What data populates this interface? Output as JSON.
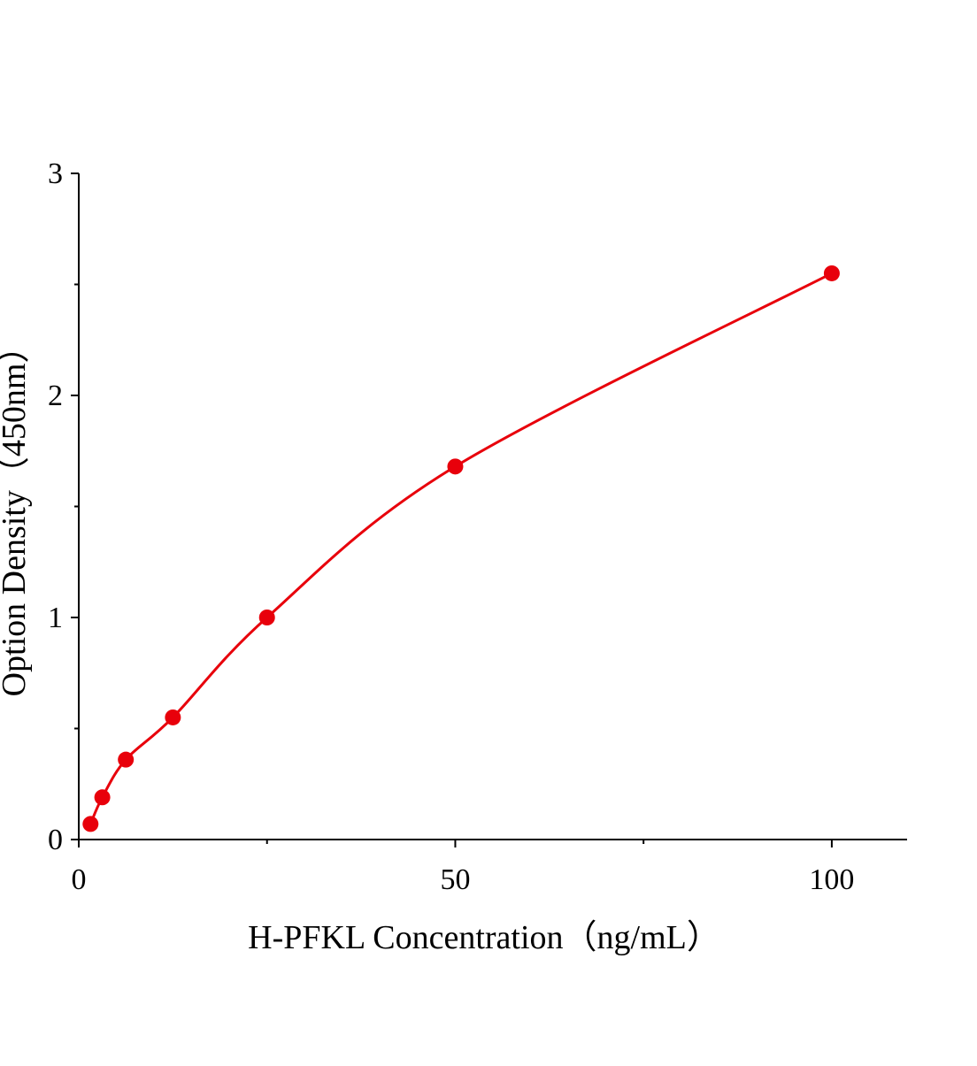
{
  "chart_data": {
    "type": "scatter",
    "x_label": "H-PFKL Concentration（ng/mL）",
    "y_label": "Option Density（450nm）",
    "color": "#e8000b",
    "x": [
      1.5625,
      3.125,
      6.25,
      12.5,
      25,
      50,
      100
    ],
    "values": [
      0.07,
      0.19,
      0.36,
      0.55,
      1.0,
      1.68,
      2.55
    ],
    "xlim": [
      0,
      110
    ],
    "ylim": [
      0,
      3
    ],
    "xticks": [
      0,
      50,
      100
    ],
    "yticks": [
      0,
      1,
      2,
      3
    ],
    "xminor_ticks": [
      25,
      75
    ],
    "yminor_ticks": [
      0.5,
      1.5,
      2.5
    ],
    "grid": false,
    "fit_curve": true
  }
}
